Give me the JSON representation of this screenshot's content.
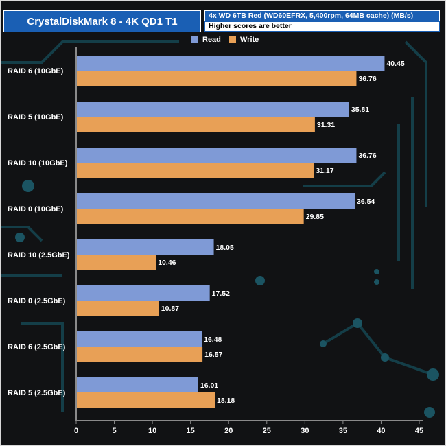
{
  "title": "CrystalDiskMark 8 - 4K QD1 T1",
  "subtitle": "4x WD 6TB Red (WD60EFRX, 5,400rpm, 64MB cache) (MB/s)",
  "note": "Higher scores are better",
  "chart_data": {
    "type": "bar",
    "orientation": "horizontal",
    "categories": [
      "RAID 6 (10GbE)",
      "RAID 5 (10GbE)",
      "RAID 10 (10GbE)",
      "RAID 0 (10GbE)",
      "RAID 10 (2.5GbE)",
      "RAID 0 (2.5GbE)",
      "RAID 6 (2.5GbE)",
      "RAID 5 (2.5GbE)"
    ],
    "series": [
      {
        "name": "Read",
        "color": "#7f9ad6",
        "values": [
          40.45,
          35.81,
          36.76,
          36.54,
          18.05,
          17.52,
          16.48,
          16.01
        ]
      },
      {
        "name": "Write",
        "color": "#e8a056",
        "values": [
          36.76,
          31.31,
          31.17,
          29.85,
          10.46,
          10.87,
          16.57,
          18.18
        ]
      }
    ],
    "value_labels": {
      "Read": [
        "40.45",
        "35.81",
        "36.76",
        "36.54",
        "18.05",
        "17.52",
        "16.48",
        "16.01"
      ],
      "Write": [
        "36.76",
        "31.31",
        "31.17",
        "29.85",
        "10.46",
        "10.87",
        "16.57",
        "18.18"
      ]
    },
    "xlim": [
      0,
      45
    ],
    "xticks": [
      0,
      5,
      10,
      15,
      20,
      25,
      30,
      35,
      40,
      45
    ],
    "xtick_labels": [
      "0",
      "5",
      "10",
      "15",
      "20",
      "25",
      "30",
      "35",
      "40",
      "45"
    ],
    "grid": false,
    "legend": "top-center"
  }
}
